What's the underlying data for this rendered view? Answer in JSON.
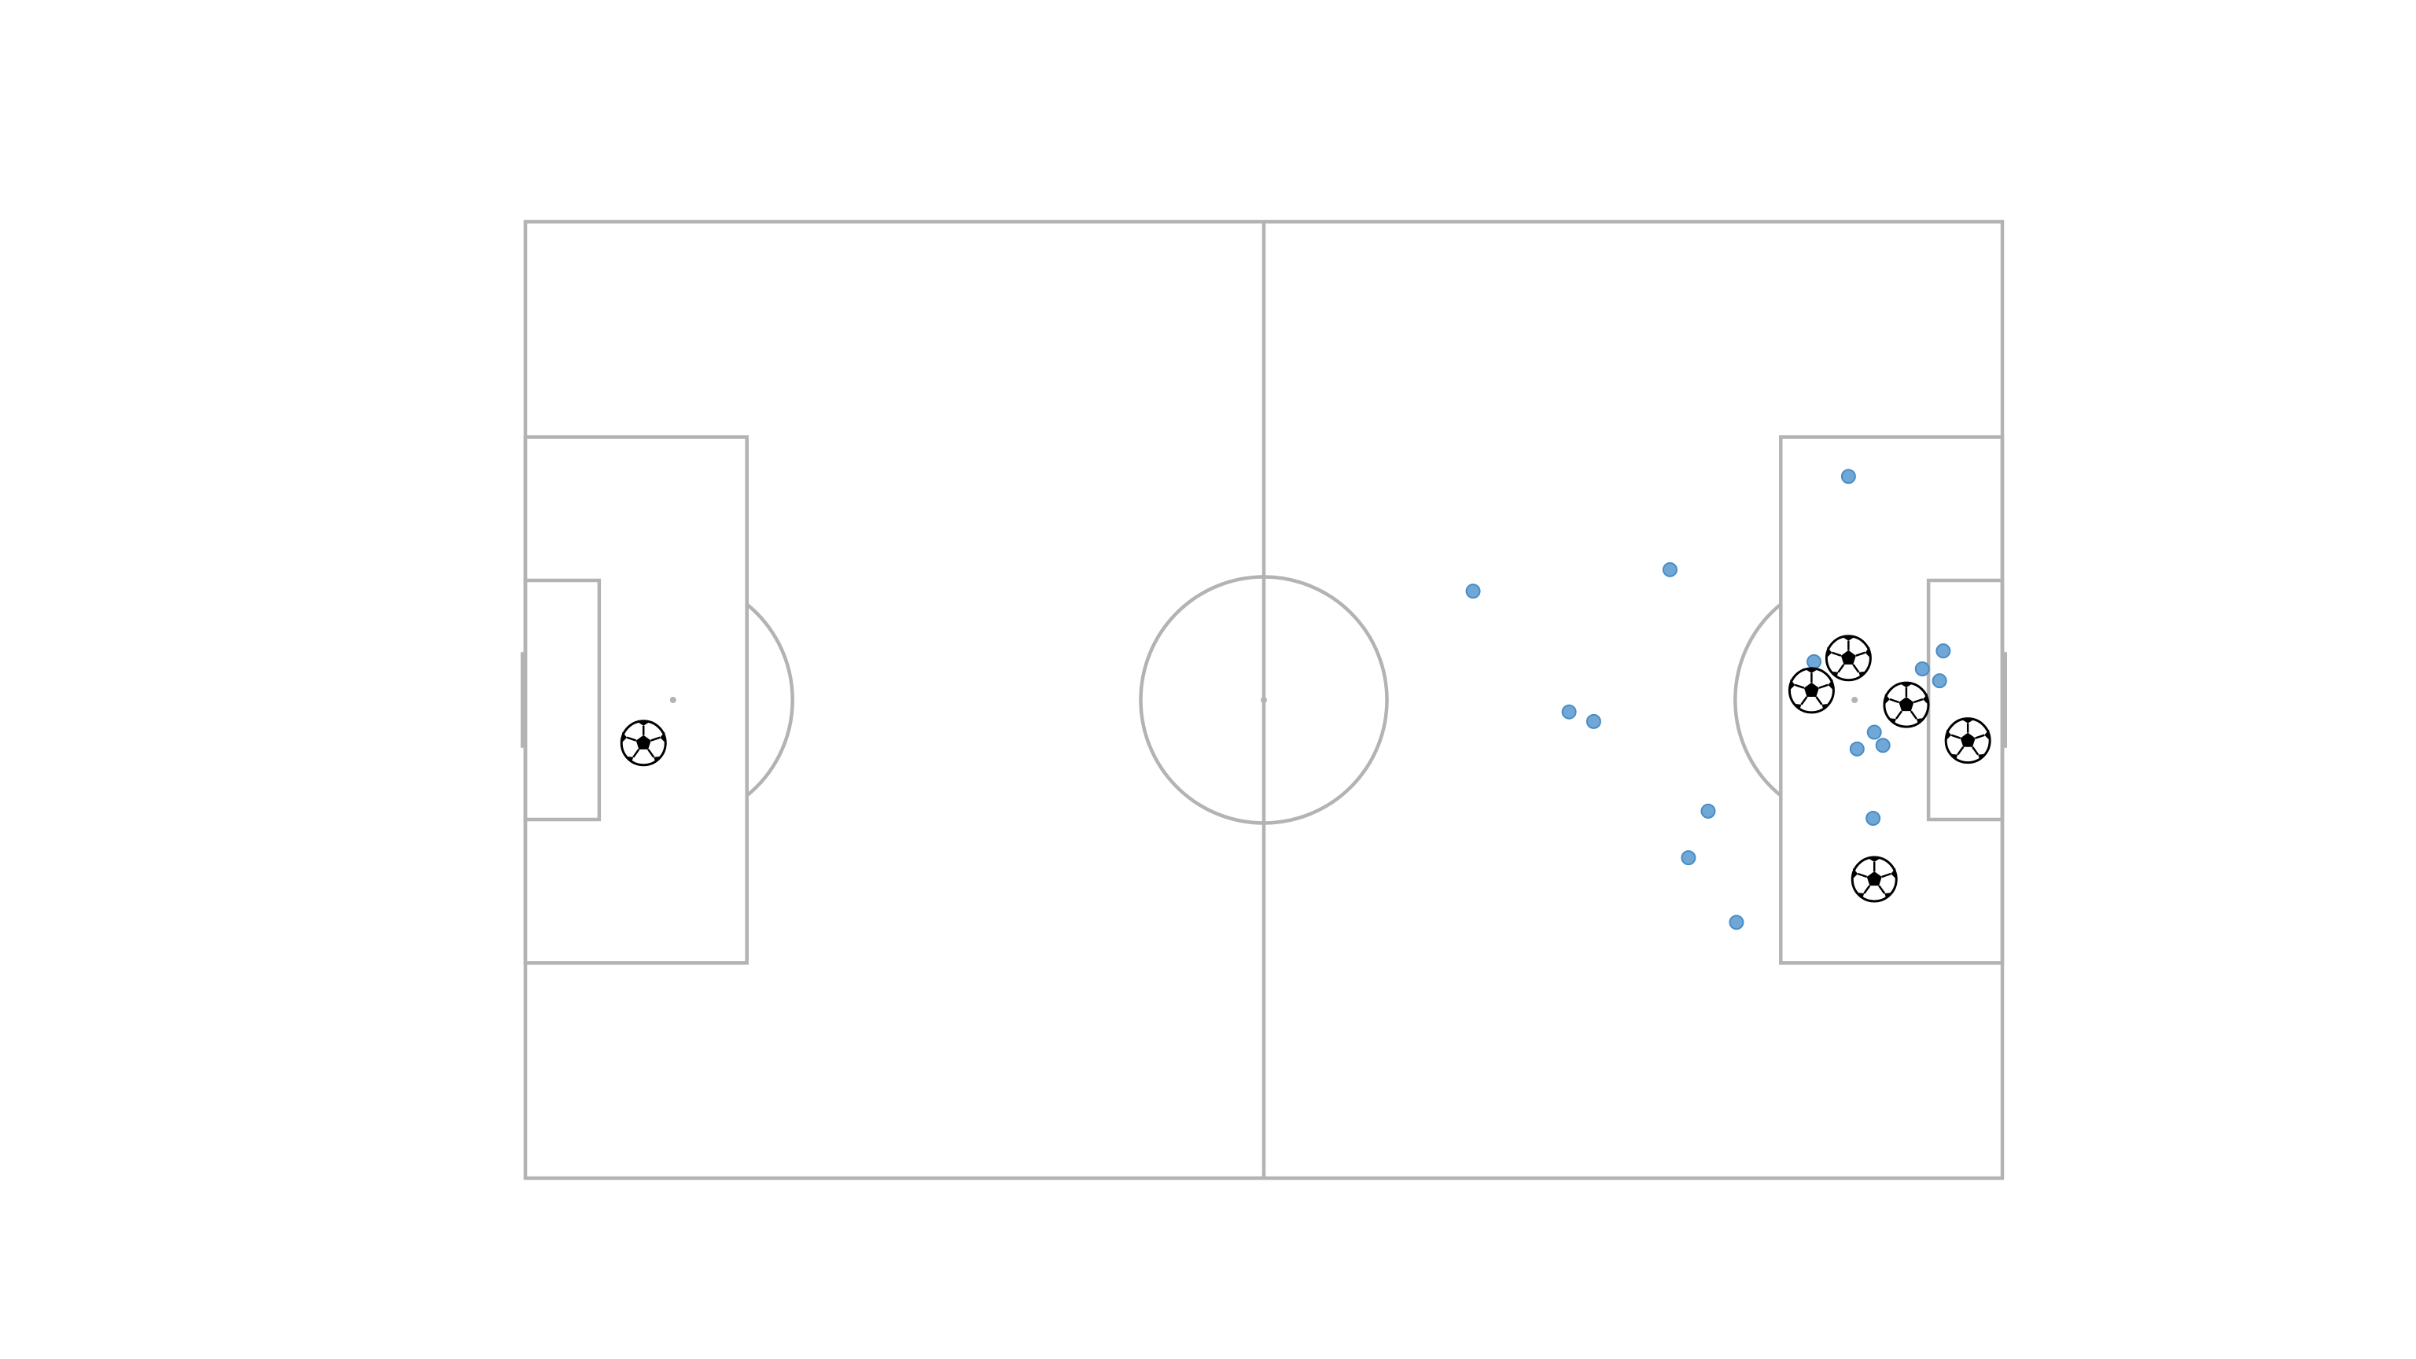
{
  "chart_data": {
    "type": "scatter",
    "title": "",
    "pitch": {
      "length": 120,
      "width": 80,
      "line_color": "#b3b3b3",
      "background": "#ffffff",
      "orientation": "horizontal"
    },
    "series": [
      {
        "marker": "dot",
        "color": "#6fa8d6",
        "points": [
          {
            "x": 107.5,
            "y": 21.3
          },
          {
            "x": 77.0,
            "y": 30.9
          },
          {
            "x": 93.0,
            "y": 29.1
          },
          {
            "x": 104.7,
            "y": 36.8
          },
          {
            "x": 113.5,
            "y": 37.4
          },
          {
            "x": 115.2,
            "y": 35.9
          },
          {
            "x": 114.9,
            "y": 38.4
          },
          {
            "x": 84.8,
            "y": 41.0
          },
          {
            "x": 86.8,
            "y": 41.8
          },
          {
            "x": 109.6,
            "y": 42.7
          },
          {
            "x": 110.3,
            "y": 43.8
          },
          {
            "x": 108.2,
            "y": 44.1
          },
          {
            "x": 96.1,
            "y": 49.3
          },
          {
            "x": 109.5,
            "y": 49.9
          },
          {
            "x": 94.5,
            "y": 53.2
          },
          {
            "x": 98.4,
            "y": 58.6
          }
        ]
      },
      {
        "marker": "football",
        "color": "#000000",
        "points": [
          {
            "x": 107.5,
            "y": 36.5
          },
          {
            "x": 104.5,
            "y": 39.2
          },
          {
            "x": 112.2,
            "y": 40.4
          },
          {
            "x": 117.2,
            "y": 43.4
          },
          {
            "x": 109.6,
            "y": 55.0
          },
          {
            "x": 9.6,
            "y": 43.6
          }
        ]
      }
    ]
  }
}
